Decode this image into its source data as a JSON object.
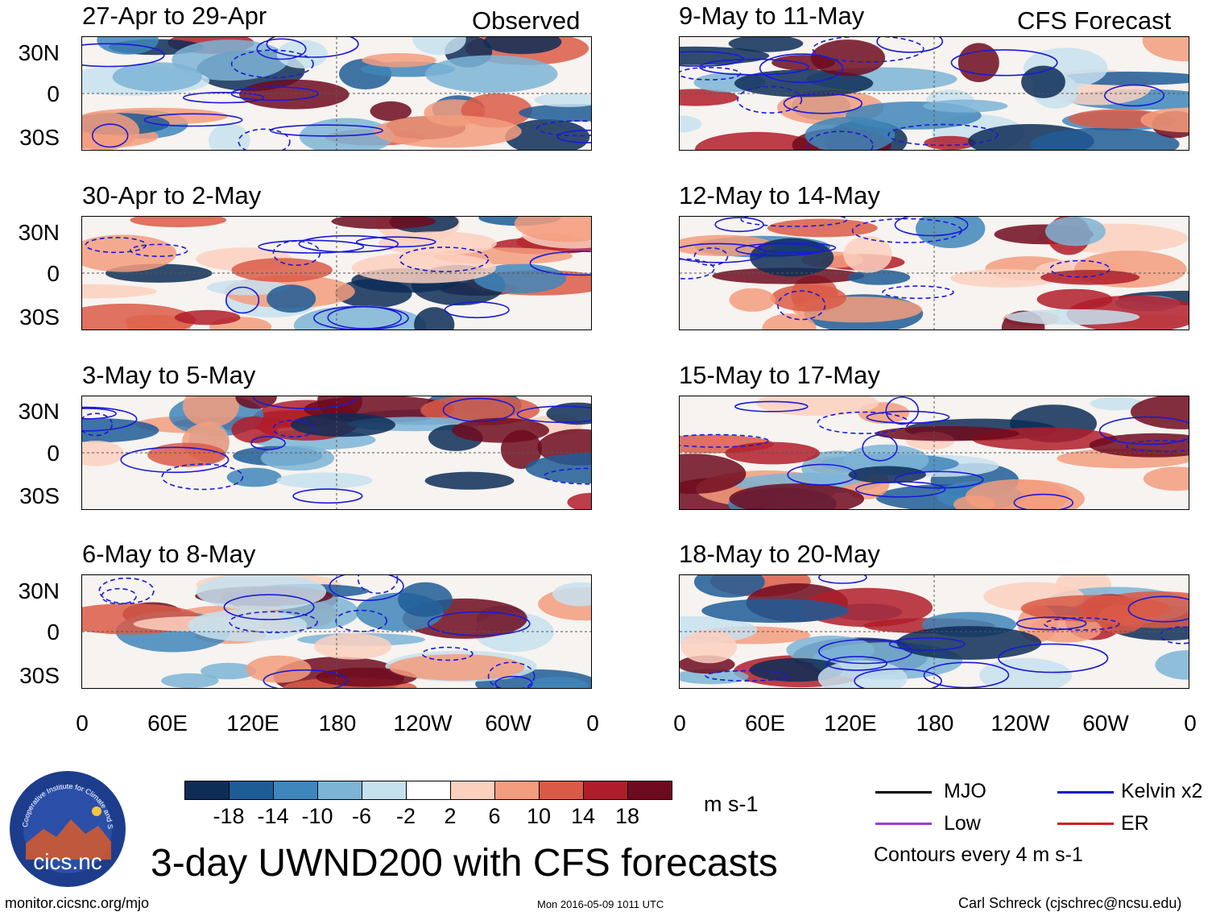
{
  "columns": [
    {
      "title": "Observed",
      "panels": [
        "27-Apr to 29-Apr",
        "30-Apr to 2-May",
        "3-May to 5-May",
        "6-May to 8-May"
      ]
    },
    {
      "title": "CFS Forecast",
      "panels": [
        "9-May to 11-May",
        "12-May to 14-May",
        "15-May to 17-May",
        "18-May to 20-May"
      ]
    }
  ],
  "lat_labels": [
    "30N",
    "0",
    "30S"
  ],
  "lon_labels": [
    "0",
    "60E",
    "120E",
    "180",
    "120W",
    "60W",
    "0"
  ],
  "colorbar": {
    "ticks": [
      "-18",
      "-14",
      "-10",
      "-6",
      "-2",
      "2",
      "6",
      "10",
      "14",
      "18"
    ],
    "units": "m s-1",
    "colors": [
      "#0d2d57",
      "#1f5c96",
      "#3f86ba",
      "#7cb4d6",
      "#c7e0ee",
      "#ffffff",
      "#fbd0bf",
      "#f39c7e",
      "#db5a47",
      "#b01d2a",
      "#6e0a1f"
    ]
  },
  "legend": [
    {
      "label": "MJO",
      "color": "#000000"
    },
    {
      "label": "Kelvin x2",
      "color": "#1010d0"
    },
    {
      "label": "Low",
      "color": "#9c3fd0"
    },
    {
      "label": "ER",
      "color": "#d02020"
    }
  ],
  "contour_note": "Contours every 4 m s-1",
  "logo_text": "cics.nc",
  "logo_ring_text": "Cooperative Institute for Climate and Satellites",
  "main_title": "3-day UWND200 with CFS forecasts",
  "footer": {
    "url": "monitor.cicsnc.org/mjo",
    "timestamp": "Mon 2016-05-09 1011 UTC",
    "author": "Carl Schreck (cjschrec@ncsu.edu)"
  }
}
